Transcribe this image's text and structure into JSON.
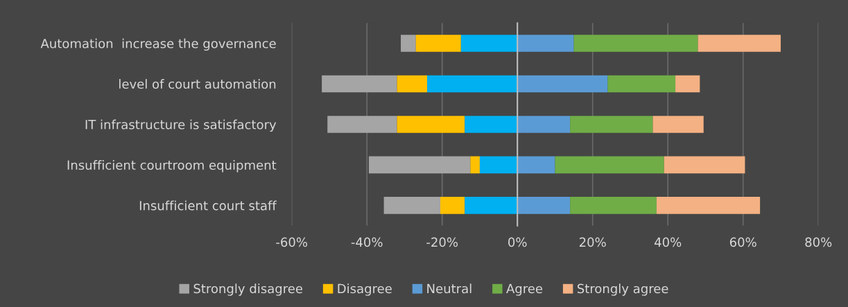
{
  "chart_data": {
    "type": "bar",
    "orientation": "horizontal",
    "categories": [
      "Automation  increase the governance",
      "level of court automation",
      "IT infrastructure is satisfactory",
      "Insufficient courtroom equipment",
      "Insufficient court staff"
    ],
    "series": [
      {
        "name": "Strongly disagree",
        "color": "#a5a5a5",
        "base": [
          -31,
          -52,
          -50.5,
          -39.5,
          -35.5
        ],
        "values": [
          4,
          20,
          18.5,
          27,
          15
        ]
      },
      {
        "name": "Disagree",
        "color": "#ffc000",
        "base": [
          -27,
          -32,
          -32,
          -12.5,
          -20.5
        ],
        "values": [
          12,
          8,
          18,
          2.5,
          6.5
        ]
      },
      {
        "color": "#00b0f0",
        "base": [
          -15,
          -24,
          -14,
          -10,
          -14
        ],
        "values": [
          15,
          24,
          14,
          10,
          14
        ]
      },
      {
        "name": "Neutral",
        "color": "#5b9bd5",
        "base": [
          0,
          0,
          0,
          0,
          0
        ],
        "values": [
          15,
          24,
          14,
          10,
          14
        ]
      },
      {
        "name": "Agree",
        "color": "#70ad47",
        "base": [
          15,
          24,
          14,
          10,
          14
        ],
        "values": [
          33,
          18,
          22,
          29,
          23
        ]
      },
      {
        "name": "Strongly agree",
        "color": "#f4b183",
        "base": [
          48,
          42,
          36,
          39,
          37
        ],
        "values": [
          22,
          6.5,
          13.5,
          21.5,
          27.5
        ]
      }
    ],
    "xlim": [
      -60,
      80
    ],
    "xticks": [
      {
        "value": -60,
        "label": "-60%"
      },
      {
        "value": -40,
        "label": "-40%"
      },
      {
        "value": -20,
        "label": "-20%"
      },
      {
        "value": 0,
        "label": "0%"
      },
      {
        "value": 20,
        "label": "20%"
      },
      {
        "value": 40,
        "label": "40%"
      },
      {
        "value": 60,
        "label": "60%"
      },
      {
        "value": 80,
        "label": "80%"
      }
    ],
    "grid": "x",
    "legend": "bottom"
  }
}
